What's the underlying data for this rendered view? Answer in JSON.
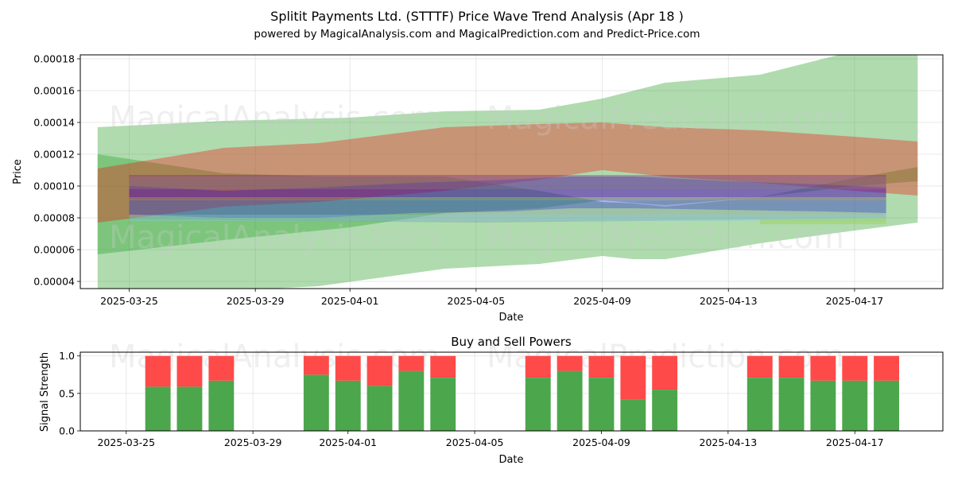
{
  "chart_data": [
    {
      "type": "area",
      "title": "Splitit Payments Ltd. (STTTF) Price Wave Trend Analysis (Apr 18 )",
      "subtitle": "powered by MagicalAnalysis.com and MagicalPrediction.com and Predict-Price.com",
      "xlabel": "Date",
      "ylabel": "Price",
      "x_ticks": [
        "2025-03-25",
        "2025-03-29",
        "2025-04-01",
        "2025-04-05",
        "2025-04-09",
        "2025-04-13",
        "2025-04-17"
      ],
      "y_ticks": [
        "0.00004",
        "0.00006",
        "0.00008",
        "0.00010",
        "0.00012",
        "0.00014",
        "0.00016",
        "0.00018"
      ],
      "ylim": [
        3.55e-05,
        0.0001825
      ],
      "grid": true,
      "dates": [
        "2025-03-24",
        "2025-03-25",
        "2025-03-26",
        "2025-03-27",
        "2025-03-28",
        "2025-03-29",
        "2025-03-30",
        "2025-03-31",
        "2025-04-01",
        "2025-04-02",
        "2025-04-03",
        "2025-04-04",
        "2025-04-05",
        "2025-04-06",
        "2025-04-07",
        "2025-04-08",
        "2025-04-09",
        "2025-04-10",
        "2025-04-11",
        "2025-04-12",
        "2025-04-13",
        "2025-04-14",
        "2025-04-15",
        "2025-04-16",
        "2025-04-17",
        "2025-04-18",
        "2025-04-19"
      ],
      "bands": [
        {
          "name": "green wide",
          "color": "#2ca02c",
          "opacity": 0.38,
          "x": [
            "2025-03-24",
            "2025-03-28",
            "2025-04-01",
            "2025-04-04",
            "2025-04-07",
            "2025-04-09",
            "2025-04-11",
            "2025-04-14",
            "2025-04-17",
            "2025-04-19"
          ],
          "upper": [
            0.000137,
            0.000141,
            0.000143,
            0.000147,
            0.000148,
            0.000155,
            0.000165,
            0.00017,
            0.000185,
            0.000195
          ],
          "lower": [
            5.7e-05,
            6.6e-05,
            7.4e-05,
            8.3e-05,
            8.6e-05,
            9.1e-05,
            8.8e-05,
            9.3e-05,
            0.0001,
            0.000103
          ]
        },
        {
          "name": "green lower",
          "color": "#2ca02c",
          "opacity": 0.38,
          "x": [
            "2025-03-24",
            "2025-03-28",
            "2025-03-31",
            "2025-04-04",
            "2025-04-07",
            "2025-04-09",
            "2025-04-10",
            "2025-04-11",
            "2025-04-14",
            "2025-04-17",
            "2025-04-19"
          ],
          "upper": [
            0.00012,
            0.000108,
            0.000106,
            0.000106,
            9.7e-05,
            9e-05,
            8.9e-05,
            8.7e-05,
            9.3e-05,
            0.000105,
            0.000112
          ],
          "lower": [
            3.2e-05,
            3.4e-05,
            3.7e-05,
            4.8e-05,
            5.1e-05,
            5.6e-05,
            5.4e-05,
            5.4e-05,
            6.4e-05,
            7.2e-05,
            7.7e-05
          ]
        },
        {
          "name": "red",
          "color": "#ff0000",
          "opacity": 0.32,
          "x": [
            "2025-03-24",
            "2025-03-28",
            "2025-03-31",
            "2025-04-04",
            "2025-04-07",
            "2025-04-09",
            "2025-04-11",
            "2025-04-14",
            "2025-04-17",
            "2025-04-19"
          ],
          "upper": [
            0.000111,
            0.000124,
            0.000127,
            0.000137,
            0.000139,
            0.00014,
            0.000137,
            0.000135,
            0.000131,
            0.000128
          ],
          "lower": [
            7.7e-05,
            8.7e-05,
            9e-05,
            9.7e-05,
            0.000104,
            0.00011,
            0.000106,
            0.000102,
            9.7e-05,
            9.4e-05
          ]
        },
        {
          "name": "blue",
          "color": "#0000ff",
          "opacity": 0.3,
          "x": [
            "2025-03-25",
            "2025-03-28",
            "2025-03-31",
            "2025-04-03",
            "2025-04-06",
            "2025-04-08",
            "2025-04-10",
            "2025-04-13",
            "2025-04-16",
            "2025-04-18"
          ],
          "upper": [
            0.0001,
            9.7e-05,
            9.9e-05,
            0.000102,
            0.000104,
            0.000106,
            0.000106,
            0.000103,
            0.000101,
            9.9e-05
          ],
          "lower": [
            8.2e-05,
            8e-05,
            8e-05,
            8.3e-05,
            8.4e-05,
            8.6e-05,
            8.6e-05,
            8.5e-05,
            8.4e-05,
            8.3e-05
          ]
        },
        {
          "name": "purple",
          "color": "#800080",
          "opacity": 0.3,
          "x": [
            "2025-03-25",
            "2025-04-18"
          ],
          "upper": [
            0.000107,
            0.000107
          ],
          "lower": [
            9.3e-05,
            9.3e-05
          ]
        },
        {
          "name": "grey",
          "color": "#808080",
          "opacity": 0.35,
          "x": [
            "2025-03-25",
            "2025-04-18"
          ],
          "upper": [
            0.000106,
            0.000106
          ],
          "lower": [
            9.8e-05,
            9.8e-05
          ]
        },
        {
          "name": "slate",
          "color": "#708090",
          "opacity": 0.28,
          "x": [
            "2025-03-25",
            "2025-03-31",
            "2025-04-05",
            "2025-04-10",
            "2025-04-14",
            "2025-04-18"
          ],
          "upper": [
            9.2e-05,
            9.1e-05,
            8.9e-05,
            9e-05,
            9.3e-05,
            9.6e-05
          ],
          "lower": [
            7.9e-05,
            7.8e-05,
            7.7e-05,
            7.8e-05,
            7.9e-05,
            8e-05
          ]
        },
        {
          "name": "lightblue",
          "color": "#87ceeb",
          "opacity": 0.3,
          "x": [
            "2025-03-25",
            "2025-04-18"
          ],
          "upper": [
            8.2e-05,
            8.2e-05
          ],
          "lower": [
            7.8e-05,
            7.8e-05
          ]
        },
        {
          "name": "orange",
          "color": "#ffa500",
          "opacity": 0.2,
          "x": [
            "2025-03-25",
            "2025-04-18"
          ],
          "upper": [
            9.3e-05,
            9.3e-05
          ],
          "lower": [
            9.1e-05,
            9.1e-05
          ]
        },
        {
          "name": "yellowgreen",
          "color": "#9acd32",
          "opacity": 0.35,
          "x": [
            "2025-04-14",
            "2025-04-18"
          ],
          "upper": [
            7.9e-05,
            8e-05
          ],
          "lower": [
            7.6e-05,
            7.6e-05
          ]
        }
      ]
    },
    {
      "type": "bar",
      "title": "Buy and Sell Powers",
      "xlabel": "Date",
      "ylabel": "Signal Strength",
      "x_ticks": [
        "2025-03-25",
        "2025-03-29",
        "2025-04-01",
        "2025-04-05",
        "2025-04-09",
        "2025-04-13",
        "2025-04-17"
      ],
      "y_ticks": [
        "0.0",
        "0.5",
        "1.0"
      ],
      "ylim": [
        0,
        1.05
      ],
      "categories": [
        "2025-03-26",
        "2025-03-27",
        "2025-03-28",
        "2025-03-31",
        "2025-04-01",
        "2025-04-02",
        "2025-04-03",
        "2025-04-04",
        "2025-04-07",
        "2025-04-08",
        "2025-04-09",
        "2025-04-10",
        "2025-04-11",
        "2025-04-14",
        "2025-04-15",
        "2025-04-16",
        "2025-04-17",
        "2025-04-18"
      ],
      "series": [
        {
          "name": "Buy",
          "color": "#4ca64c",
          "values": [
            0.59,
            0.59,
            0.67,
            0.75,
            0.67,
            0.6,
            0.8,
            0.71,
            0.71,
            0.8,
            0.71,
            0.42,
            0.55,
            0.71,
            0.71,
            0.67,
            0.67,
            0.67
          ]
        },
        {
          "name": "Sell",
          "color": "#ff4a4a",
          "values": [
            0.41,
            0.41,
            0.33,
            0.25,
            0.33,
            0.4,
            0.2,
            0.29,
            0.29,
            0.2,
            0.29,
            0.58,
            0.45,
            0.29,
            0.29,
            0.33,
            0.33,
            0.33
          ]
        }
      ]
    }
  ],
  "watermarks": [
    "MagicalAnalysis.com",
    "MagicalPrediction.com"
  ]
}
